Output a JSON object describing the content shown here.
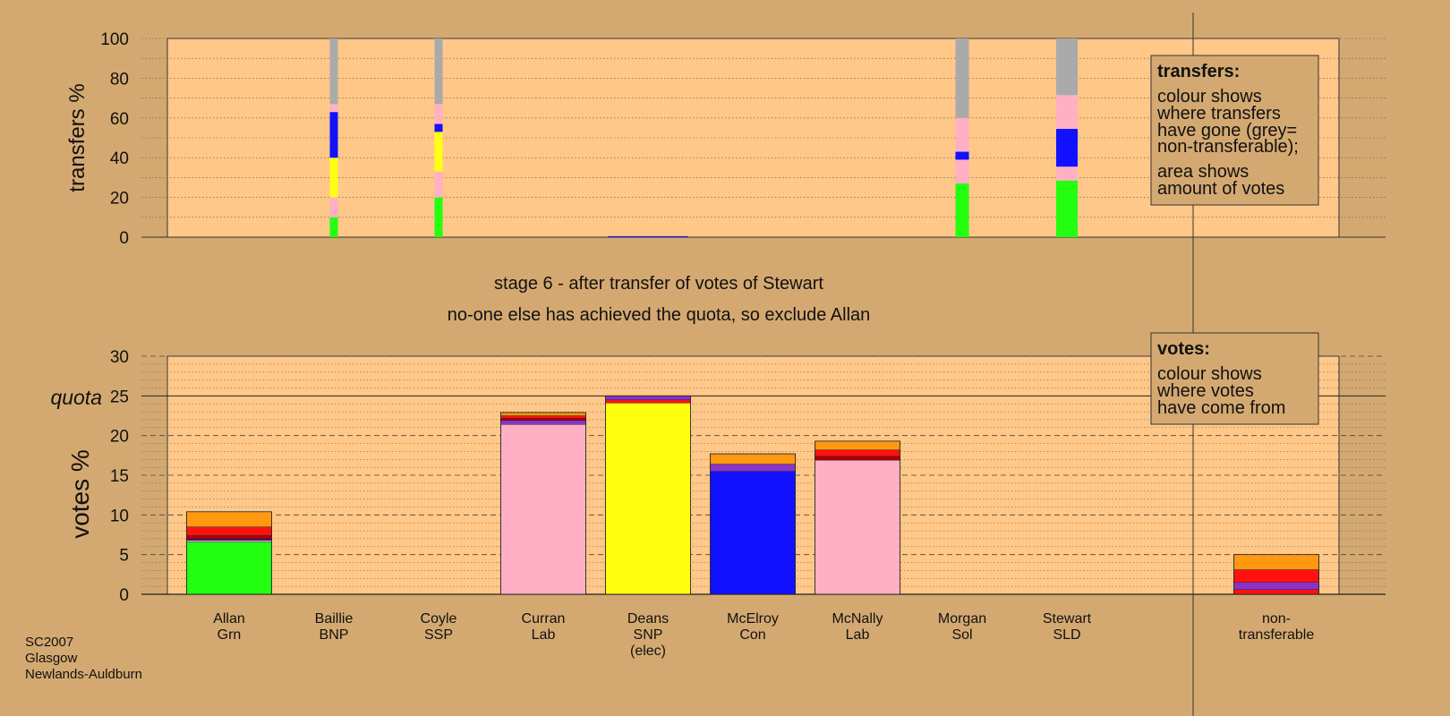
{
  "chart_data": [
    {
      "type": "bar",
      "panel": "transfers",
      "ylabel": "transfers %",
      "ylim": [
        0,
        100
      ],
      "yticks": [
        0,
        20,
        40,
        60,
        80,
        100
      ],
      "categories": [
        "Allan\nGrn",
        "Baillie\nBNP",
        "Coyle\nSSP",
        "Curran\nLab",
        "Deans\nSNP\n(elec)",
        "McElroy\nCon",
        "McNally\nLab",
        "Morgan\nSol",
        "Stewart\nSLD"
      ],
      "columns": [
        [],
        [
          {
            "color": "#22FF11",
            "v": 10
          },
          {
            "color": "#FFB0C4",
            "v": 10
          },
          {
            "color": "#FFFF11",
            "v": 20
          },
          {
            "color": "#1111FF",
            "v": 23
          },
          {
            "color": "#FFB0C4",
            "v": 4
          },
          {
            "color": "#AAAAAA",
            "v": 33
          }
        ],
        [
          {
            "color": "#22FF11",
            "v": 20
          },
          {
            "color": "#FFB0C4",
            "v": 13
          },
          {
            "color": "#FFFF11",
            "v": 20
          },
          {
            "color": "#1111FF",
            "v": 4
          },
          {
            "color": "#FFB0C4",
            "v": 10
          },
          {
            "color": "#AAAAAA",
            "v": 33
          }
        ],
        [],
        [
          {
            "color": "#1111FF",
            "v": 0.5
          }
        ],
        [],
        [],
        [
          {
            "color": "#22FF11",
            "v": 27
          },
          {
            "color": "#FFB0C4",
            "v": 12
          },
          {
            "color": "#1111FF",
            "v": 4
          },
          {
            "color": "#FFB0C4",
            "v": 17
          },
          {
            "color": "#AAAAAA",
            "v": 40
          }
        ],
        [
          {
            "color": "#22FF11",
            "v": 28.5
          },
          {
            "color": "#FFB0C4",
            "v": 7
          },
          {
            "color": "#1111FF",
            "v": 19
          },
          {
            "color": "#FFB0C4",
            "v": 17
          },
          {
            "color": "#AAAAAA",
            "v": 28.5
          }
        ]
      ]
    },
    {
      "type": "bar",
      "panel": "votes",
      "ylabel": "votes %",
      "ylim": [
        0,
        30
      ],
      "yticks": [
        0,
        5,
        10,
        15,
        20,
        25,
        30
      ],
      "quota": 25,
      "quota_label": "quota",
      "categories": [
        "Allan\nGrn",
        "Baillie\nBNP",
        "Coyle\nSSP",
        "Curran\nLab",
        "Deans\nSNP\n(elec)",
        "McElroy\nCon",
        "McNally\nLab",
        "Morgan\nSol",
        "Stewart\nSLD",
        "non-\ntransferable"
      ],
      "columns": [
        [
          {
            "color": "#22FF11",
            "v": 6.6
          },
          {
            "color": "#FFB0C4",
            "v": 0.2
          },
          {
            "color": "#1111FF",
            "v": 0.15
          },
          {
            "color": "#AA0000",
            "v": 0.45
          },
          {
            "color": "#FF1111",
            "v": 1.1
          },
          {
            "color": "#FF9911",
            "v": 1.9
          }
        ],
        [],
        [],
        [
          {
            "color": "#FFB0C4",
            "v": 21.4
          },
          {
            "color": "#8833CC",
            "v": 0.5
          },
          {
            "color": "#AA0000",
            "v": 0.3
          },
          {
            "color": "#FF1111",
            "v": 0.3
          },
          {
            "color": "#FF9911",
            "v": 0.4
          }
        ],
        [
          {
            "color": "#FFFF11",
            "v": 24.1
          },
          {
            "color": "#FF1111",
            "v": 0.4
          },
          {
            "color": "#8833CC",
            "v": 0.5
          }
        ],
        [
          {
            "color": "#1111FF",
            "v": 15.5
          },
          {
            "color": "#8833CC",
            "v": 0.9
          },
          {
            "color": "#FF9911",
            "v": 1.3
          }
        ],
        [
          {
            "color": "#FFB0C4",
            "v": 16.9
          },
          {
            "color": "#AA0000",
            "v": 0.5
          },
          {
            "color": "#FF1111",
            "v": 0.8
          },
          {
            "color": "#FF9911",
            "v": 1.1
          }
        ],
        [],
        [],
        [
          {
            "color": "#FF1111",
            "v": 0.6
          },
          {
            "color": "#8833CC",
            "v": 0.9
          },
          {
            "color": "#FF1111",
            "v": 1.6
          },
          {
            "color": "#FF9911",
            "v": 1.9
          }
        ]
      ]
    }
  ],
  "stage_text": "stage 6 - after transfer of votes of Stewart",
  "decision_text": "no-one else has achieved the quota, so exclude Allan",
  "transfers_legend": {
    "title": "transfers:",
    "lines": [
      "colour shows",
      "where transfers",
      "have gone (grey=",
      "non-transferable);",
      "area shows",
      "amount of votes"
    ]
  },
  "votes_legend": {
    "title": "votes:",
    "lines": [
      "colour shows",
      "where votes",
      "have come from"
    ]
  },
  "footer": [
    "SC2007",
    "Glasgow",
    "Newlands-Auldburn"
  ],
  "colors": {
    "background": "#D4A971",
    "plot_fill": "#FFC888",
    "legend_fill": "#D4A971"
  }
}
